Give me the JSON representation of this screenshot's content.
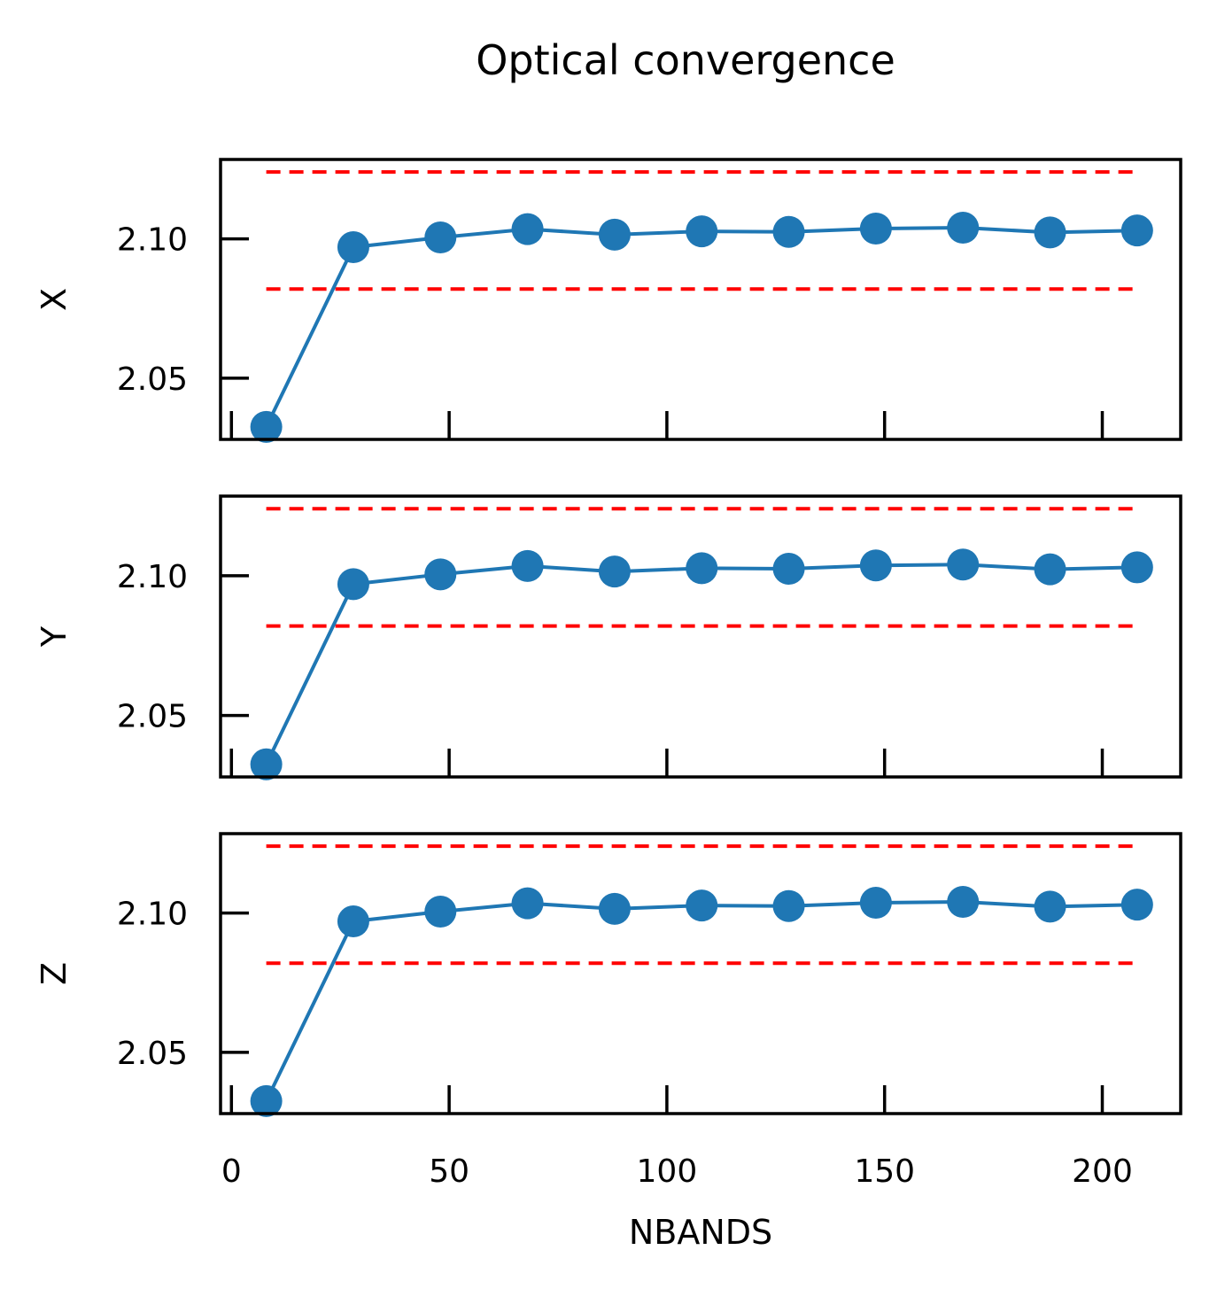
{
  "chart_data": {
    "type": "line",
    "title": "Optical convergence",
    "xlabel": "NBANDS",
    "x_ticks": [
      0,
      50,
      100,
      150,
      200
    ],
    "xlim": [
      -2.5,
      218
    ],
    "x": [
      8,
      28,
      48,
      68,
      88,
      108,
      128,
      148,
      168,
      188,
      208
    ],
    "panels": [
      {
        "ylabel": "X",
        "ylim": [
          2.028,
          2.1285
        ],
        "y_ticks": [
          "2.05",
          "2.10"
        ],
        "series": [
          {
            "values": [
              2.0325,
              2.097,
              2.1005,
              2.1035,
              2.1015,
              2.1027,
              2.1025,
              2.1037,
              2.104,
              2.1023,
              2.103
            ]
          }
        ],
        "reference_lines": [
          2.124,
          2.082
        ]
      },
      {
        "ylabel": "Y",
        "ylim": [
          2.028,
          2.1285
        ],
        "y_ticks": [
          "2.05",
          "2.10"
        ],
        "series": [
          {
            "values": [
              2.0325,
              2.097,
              2.1005,
              2.1035,
              2.1015,
              2.1027,
              2.1025,
              2.1037,
              2.104,
              2.1023,
              2.103
            ]
          }
        ],
        "reference_lines": [
          2.124,
          2.082
        ]
      },
      {
        "ylabel": "Z",
        "ylim": [
          2.028,
          2.1285
        ],
        "y_ticks": [
          "2.05",
          "2.10"
        ],
        "series": [
          {
            "values": [
              2.0325,
              2.097,
              2.1005,
              2.1035,
              2.1015,
              2.1027,
              2.1025,
              2.1037,
              2.104,
              2.1023,
              2.103
            ]
          }
        ],
        "reference_lines": [
          2.124,
          2.082
        ]
      }
    ],
    "colors": {
      "series": "#1f77b4",
      "reference": "#ff0000",
      "axes": "#000000"
    },
    "grid": false,
    "legend": "none"
  }
}
